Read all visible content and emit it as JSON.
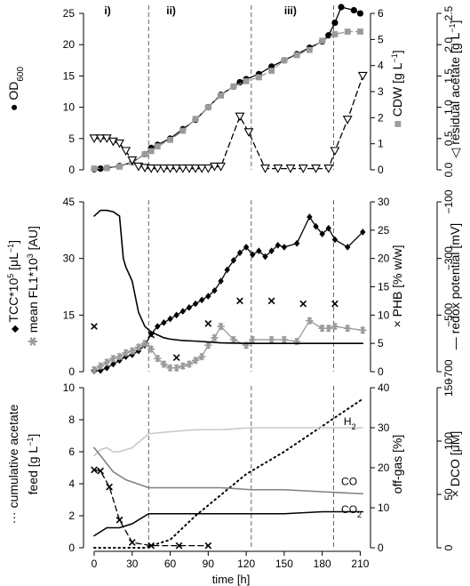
{
  "chart_data": [
    {
      "type": "line",
      "panel": "top",
      "xlim": [
        0,
        216
      ],
      "phase_lines_x": [
        43,
        124,
        189
      ],
      "phase_labels": [
        {
          "x": 8,
          "text": "i)"
        },
        {
          "x": 57,
          "text": "ii)"
        },
        {
          "x": 150,
          "text": "iii)"
        }
      ],
      "y_left": {
        "label_main": "OD",
        "label_sub": "600",
        "symbol": "●",
        "ylim": [
          0,
          26
        ],
        "ticks": [
          0,
          5,
          10,
          15,
          20,
          25
        ]
      },
      "y_right": {
        "label": "CDW [g L",
        "label_sup": "−1",
        "label_close": "]",
        "symbol": "■",
        "ylim": [
          0,
          6.24
        ],
        "ticks": [
          0,
          1,
          2,
          3,
          4,
          5,
          6
        ]
      },
      "y_right2": {
        "label": "residual acetate [g L",
        "label_sup": "−1",
        "label_close": "]",
        "symbol": "◁",
        "ylim": [
          0,
          2.6
        ],
        "ticks": [
          0.0,
          0.5,
          1.0,
          1.5,
          2.0,
          2.5
        ],
        "tick_labels": [
          "0.0",
          "0.5",
          "1.0",
          "1.5",
          "2.0",
          "2.5"
        ]
      },
      "series": [
        {
          "axis": "left",
          "style": "solid",
          "marker": "circle",
          "color": "#000000",
          "x": [
            0,
            5,
            10,
            20,
            30,
            40,
            45,
            50,
            60,
            70,
            80,
            90,
            100,
            110,
            115,
            120,
            130,
            140,
            150,
            160,
            170,
            180,
            185,
            190,
            195,
            205,
            210
          ],
          "y": [
            0.1,
            0.2,
            0.3,
            0.6,
            1.2,
            2.5,
            3.5,
            4.0,
            5.0,
            6.5,
            8.0,
            10.0,
            12.0,
            13.3,
            14.0,
            14.5,
            15.3,
            16.5,
            17.5,
            18.5,
            19.5,
            20.5,
            21.5,
            23.5,
            26.0,
            25.5,
            25.0
          ]
        },
        {
          "axis": "right",
          "style": "dashed",
          "marker": "square",
          "color": "#9a9a9a",
          "x": [
            0,
            10,
            20,
            30,
            40,
            45,
            50,
            60,
            70,
            80,
            90,
            100,
            110,
            120,
            130,
            140,
            150,
            160,
            170,
            180,
            190,
            200,
            210
          ],
          "y": [
            0.05,
            0.07,
            0.12,
            0.3,
            0.6,
            0.72,
            0.9,
            1.15,
            1.5,
            1.95,
            2.4,
            2.85,
            3.2,
            3.4,
            3.55,
            3.8,
            4.2,
            4.4,
            4.6,
            4.95,
            5.2,
            5.3,
            5.3
          ]
        },
        {
          "axis": "right2",
          "style": "dashed",
          "marker": "triangle-down",
          "color": "#000000",
          "x": [
            0,
            5,
            10,
            15,
            20,
            25,
            30,
            35,
            40,
            45,
            50,
            55,
            60,
            65,
            70,
            75,
            80,
            85,
            90,
            95,
            100,
            115,
            122,
            135,
            145,
            155,
            165,
            175,
            185,
            190,
            200,
            212
          ],
          "y": [
            0.5,
            0.5,
            0.5,
            0.45,
            0.42,
            0.3,
            0.15,
            0.05,
            0.03,
            0.02,
            0.02,
            0.02,
            0.02,
            0.02,
            0.02,
            0.02,
            0.02,
            0.02,
            0.02,
            0.05,
            0.05,
            0.85,
            0.6,
            0.02,
            0.02,
            0.02,
            0.02,
            0.02,
            0.02,
            0.3,
            0.8,
            1.5
          ]
        }
      ]
    },
    {
      "type": "line",
      "panel": "middle",
      "xlim": [
        0,
        216
      ],
      "phase_lines_x": [
        43,
        124,
        189
      ],
      "y_left": {
        "label_1": "TCC*10",
        "label_1_sup": "5",
        "label_1_tail": " [μL",
        "label_1_sup2": "−1",
        "label_1_close": "]",
        "label_2": "mean FL1*10",
        "label_2_sup": "3",
        "label_2_tail": " [AU]",
        "symbol_1": "◆",
        "symbol_2": "✱",
        "ylim": [
          0,
          45
        ],
        "ticks": [
          0,
          15,
          30,
          45
        ]
      },
      "y_right": {
        "label": "PHB [% w/w]",
        "symbol": "×",
        "ylim": [
          0,
          30
        ],
        "ticks": [
          0,
          5,
          10,
          15,
          20,
          25,
          30
        ]
      },
      "y_right2": {
        "label": "redox potential [mV]",
        "symbol": "—",
        "ylim": [
          -700,
          -100
        ],
        "ticks": [
          -700,
          -500,
          -300,
          -100
        ],
        "tick_labels": [
          "−700",
          "−500",
          "−300",
          "−100"
        ]
      },
      "series": [
        {
          "axis": "left",
          "style": "solid",
          "marker": "diamond",
          "color": "#000000",
          "x": [
            0,
            5,
            10,
            15,
            20,
            25,
            30,
            35,
            40,
            45,
            50,
            55,
            60,
            65,
            70,
            75,
            80,
            85,
            90,
            95,
            100,
            105,
            110,
            115,
            120,
            125,
            130,
            135,
            140,
            145,
            150,
            160,
            170,
            175,
            180,
            185,
            190,
            200,
            212
          ],
          "y": [
            0.2,
            0.3,
            1.0,
            2.0,
            3.0,
            4.0,
            4.5,
            5.5,
            7.0,
            10.0,
            12.0,
            13.0,
            14.0,
            15.0,
            16.0,
            17.0,
            18.0,
            19.0,
            20.0,
            21.5,
            24.0,
            27.0,
            29.5,
            31.5,
            33.0,
            31.0,
            32.0,
            30.5,
            32.0,
            33.5,
            33.0,
            34.0,
            41.0,
            38.5,
            36.5,
            38.0,
            35.0,
            33.0,
            37.0
          ]
        },
        {
          "axis": "left",
          "style": "solid",
          "marker": "asterisk",
          "color": "#9a9a9a",
          "x": [
            0,
            5,
            10,
            15,
            20,
            25,
            30,
            35,
            40,
            45,
            50,
            55,
            60,
            65,
            70,
            75,
            80,
            85,
            90,
            95,
            100,
            110,
            120,
            125,
            140,
            150,
            160,
            170,
            180,
            185,
            190,
            200,
            212
          ],
          "y": [
            0.5,
            1.5,
            2.5,
            3.5,
            4.0,
            5.0,
            5.5,
            6.5,
            7.5,
            6.0,
            3.5,
            2.0,
            1.0,
            1.0,
            1.5,
            2.0,
            3.0,
            4.0,
            7.0,
            9.0,
            12.0,
            8.5,
            7.0,
            8.5,
            8.5,
            8.5,
            8.0,
            13.5,
            11.5,
            11.5,
            12.0,
            11.5,
            11.0
          ]
        },
        {
          "axis": "right",
          "style": "points",
          "marker": "cross",
          "color": "#000000",
          "x": [
            0,
            45,
            65,
            90,
            115,
            140,
            165,
            190
          ],
          "y": [
            8.0,
            6.5,
            2.5,
            8.5,
            12.5,
            12.5,
            12.0,
            12.0
          ]
        },
        {
          "axis": "right2",
          "style": "solid",
          "marker": "none",
          "color": "#000000",
          "x": [
            0,
            5,
            10,
            15,
            20,
            23,
            25,
            30,
            35,
            40,
            45,
            50,
            55,
            60,
            70,
            80,
            90,
            100,
            120,
            150,
            180,
            212
          ],
          "y": [
            -150,
            -130,
            -130,
            -135,
            -150,
            -300,
            -330,
            -380,
            -490,
            -540,
            -560,
            -570,
            -580,
            -585,
            -590,
            -592,
            -595,
            -598,
            -600,
            -600,
            -600,
            -600
          ]
        }
      ]
    },
    {
      "type": "line",
      "panel": "bottom",
      "xlim": [
        0,
        216
      ],
      "phase_lines_x": [
        43,
        124,
        189
      ],
      "xlabel": "time [h]",
      "xticks": [
        0,
        30,
        60,
        90,
        120,
        150,
        180,
        210
      ],
      "y_left": {
        "label": "cumulative acetate",
        "label_2": "feed [g L",
        "label_2_sup": "−1",
        "label_2_close": "]",
        "symbol": "···",
        "ylim": [
          0,
          10
        ],
        "ticks": [
          0,
          2,
          4,
          6,
          8,
          10
        ]
      },
      "y_right": {
        "label": "off-gas [%]",
        "ylim": [
          0,
          40
        ],
        "ticks": [
          0,
          10,
          20,
          30,
          40
        ]
      },
      "y_right2": {
        "label": "DCO [μM]",
        "symbol": "×",
        "ylim": [
          0,
          150
        ],
        "ticks": [
          0,
          50,
          100,
          150
        ]
      },
      "annotations": [
        {
          "text": "H",
          "sub": "2",
          "x": 197,
          "y": 30
        },
        {
          "text": "CO",
          "sub": "",
          "x": 195,
          "y": 15
        },
        {
          "text": "CO",
          "sub": "2",
          "x": 195,
          "y": 8
        }
      ],
      "series": [
        {
          "axis": "left",
          "style": "dotted",
          "marker": "none",
          "color": "#000000",
          "x": [
            0,
            40,
            60,
            80,
            100,
            120,
            150,
            180,
            212
          ],
          "y": [
            0,
            0,
            0.5,
            2.0,
            3.3,
            4.6,
            6.0,
            7.6,
            9.3
          ]
        },
        {
          "axis": "right",
          "style": "solid",
          "marker": "none",
          "color": "#c8c8c8",
          "x": [
            0,
            5,
            10,
            15,
            20,
            25,
            30,
            43,
            60,
            80,
            100,
            124,
            150,
            180,
            212
          ],
          "y": [
            23,
            24.5,
            25,
            24,
            24,
            24.5,
            25,
            28.5,
            29,
            29.5,
            29.5,
            30,
            30,
            30,
            30
          ]
        },
        {
          "axis": "right",
          "style": "solid",
          "marker": "none",
          "color": "#808080",
          "x": [
            0,
            5,
            10,
            15,
            20,
            25,
            43,
            60,
            80,
            100,
            124,
            150,
            180,
            212
          ],
          "y": [
            25,
            23,
            21,
            19,
            18,
            17,
            15,
            15,
            15,
            15,
            14.5,
            14.5,
            14,
            13.5
          ]
        },
        {
          "axis": "right",
          "style": "solid",
          "marker": "none",
          "color": "#000000",
          "x": [
            0,
            5,
            10,
            15,
            20,
            25,
            30,
            43,
            60,
            80,
            100,
            124,
            150,
            180,
            212
          ],
          "y": [
            3,
            4,
            5,
            5,
            5,
            5.5,
            6,
            8.5,
            8.5,
            8.5,
            8.5,
            8.5,
            8.5,
            9,
            9
          ]
        },
        {
          "axis": "right2",
          "style": "dashed",
          "marker": "cross",
          "color": "#000000",
          "x": [
            0,
            5,
            12,
            20,
            30,
            45,
            67,
            90
          ],
          "y": [
            73,
            72,
            57,
            26,
            5,
            2,
            2,
            2
          ]
        }
      ]
    }
  ]
}
